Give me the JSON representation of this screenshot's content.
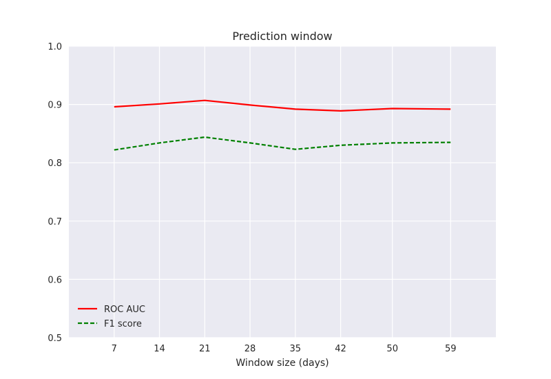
{
  "chart_data": {
    "type": "line",
    "title": "Prediction window",
    "xlabel": "Window size (days)",
    "ylabel": "",
    "x": [
      7,
      14,
      21,
      28,
      35,
      42,
      50,
      59
    ],
    "x_tick_labels": [
      "7",
      "14",
      "21",
      "28",
      "35",
      "42",
      "50",
      "59"
    ],
    "y_tick_labels": [
      "0.5",
      "0.6",
      "0.7",
      "0.8",
      "0.9",
      "1.0"
    ],
    "ylim": [
      0.5,
      1.0
    ],
    "grid": true,
    "legend_position": "lower-left",
    "background": "#eaeaf2",
    "series": [
      {
        "name": "ROC AUC",
        "color": "#ff0000",
        "style": "solid",
        "values": [
          0.896,
          0.901,
          0.907,
          0.899,
          0.892,
          0.889,
          0.893,
          0.892
        ]
      },
      {
        "name": "F1 score",
        "color": "#008000",
        "style": "dashed",
        "values": [
          0.822,
          0.834,
          0.844,
          0.834,
          0.823,
          0.83,
          0.834,
          0.835
        ]
      }
    ]
  }
}
